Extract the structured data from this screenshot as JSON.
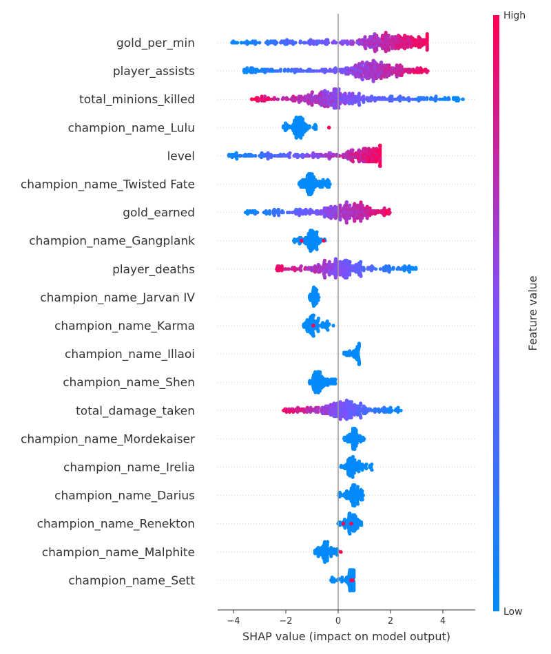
{
  "chart_data": {
    "type": "scatter",
    "subtype": "shap-beeswarm",
    "xlabel": "SHAP value (impact on model output)",
    "xlim": [
      -4.6,
      5.3
    ],
    "xticks": [
      -4,
      -2,
      0,
      2,
      4
    ],
    "xtick_labels": [
      "−4",
      "−2",
      "0",
      "2",
      "4"
    ],
    "grid": false,
    "colorbar": {
      "label": "Feature value",
      "high_label": "High",
      "low_label": "Low",
      "low_color": "#008bfb",
      "mid_color": "#7c52ff",
      "high_color": "#ff0052"
    },
    "features": [
      {
        "name": "gold_per_min",
        "min": -4.1,
        "max": 3.4,
        "peak": 2.0,
        "n": 420,
        "spread": 1.6,
        "low_side": "left"
      },
      {
        "name": "player_assists",
        "min": -3.6,
        "max": 3.5,
        "peak": 1.3,
        "n": 420,
        "spread": 1.5,
        "low_side": "left"
      },
      {
        "name": "total_minions_killed",
        "min": -3.3,
        "max": 4.8,
        "peak": -0.3,
        "n": 420,
        "spread": 1.5,
        "low_side": "right",
        "outliers": [
          -3.3,
          -2.7
        ]
      },
      {
        "name": "champion_name_Lulu",
        "min": -2.1,
        "max": -0.8,
        "peak": -1.5,
        "n": 130,
        "spread": 0.3,
        "low_side": "none",
        "outliers": [
          -0.35
        ]
      },
      {
        "name": "level",
        "min": -4.2,
        "max": 1.6,
        "peak": 1.2,
        "n": 330,
        "spread": 1.3,
        "low_side": "left"
      },
      {
        "name": "champion_name_Twisted Fate",
        "min": -1.5,
        "max": -0.2,
        "peak": -1.1,
        "n": 140,
        "spread": 0.3,
        "low_side": "none"
      },
      {
        "name": "gold_earned",
        "min": -3.6,
        "max": 2.0,
        "peak": 0.5,
        "n": 360,
        "spread": 1.2,
        "low_side": "left"
      },
      {
        "name": "champion_name_Gangplank",
        "min": -1.7,
        "max": -0.5,
        "peak": -1.0,
        "n": 120,
        "spread": 0.3,
        "low_side": "none",
        "outliers": [
          -1.4,
          -0.55
        ]
      },
      {
        "name": "player_deaths",
        "min": -2.4,
        "max": 3.0,
        "peak": 0.0,
        "n": 330,
        "spread": 1.1,
        "low_side": "right"
      },
      {
        "name": "champion_name_Jarvan IV",
        "min": -1.1,
        "max": -0.7,
        "peak": -0.9,
        "n": 50,
        "spread": 0.1,
        "low_side": "none"
      },
      {
        "name": "champion_name_Karma",
        "min": -1.4,
        "max": -0.1,
        "peak": -1.0,
        "n": 110,
        "spread": 0.35,
        "low_side": "none",
        "outliers": [
          -0.95
        ]
      },
      {
        "name": "champion_name_Illaoi",
        "min": 0.2,
        "max": 0.8,
        "peak": 0.75,
        "n": 60,
        "spread": 0.15,
        "low_side": "none"
      },
      {
        "name": "champion_name_Shen",
        "min": -1.1,
        "max": -0.1,
        "peak": -0.8,
        "n": 120,
        "spread": 0.25,
        "low_side": "none"
      },
      {
        "name": "total_damage_taken",
        "min": -2.1,
        "max": 2.5,
        "peak": 0.2,
        "n": 330,
        "spread": 1.0,
        "low_side": "right"
      },
      {
        "name": "champion_name_Mordekaiser",
        "min": 0.2,
        "max": 1.0,
        "peak": 0.6,
        "n": 90,
        "spread": 0.2,
        "low_side": "none"
      },
      {
        "name": "champion_name_Irelia",
        "min": 0.1,
        "max": 1.3,
        "peak": 0.5,
        "n": 110,
        "spread": 0.3,
        "low_side": "none"
      },
      {
        "name": "champion_name_Darius",
        "min": 0.0,
        "max": 1.0,
        "peak": 0.6,
        "n": 110,
        "spread": 0.25,
        "low_side": "none"
      },
      {
        "name": "champion_name_Renekton",
        "min": 0.0,
        "max": 0.9,
        "peak": 0.5,
        "n": 100,
        "spread": 0.25,
        "low_side": "none",
        "outliers": [
          0.2,
          0.5
        ]
      },
      {
        "name": "champion_name_Malphite",
        "min": -0.9,
        "max": 0.0,
        "peak": -0.5,
        "n": 100,
        "spread": 0.25,
        "low_side": "none",
        "outliers": [
          0.1
        ]
      },
      {
        "name": "champion_name_Sett",
        "min": -0.3,
        "max": 0.6,
        "peak": 0.5,
        "n": 90,
        "spread": 0.2,
        "low_side": "none",
        "outliers": [
          0.5,
          0.55
        ]
      }
    ]
  }
}
